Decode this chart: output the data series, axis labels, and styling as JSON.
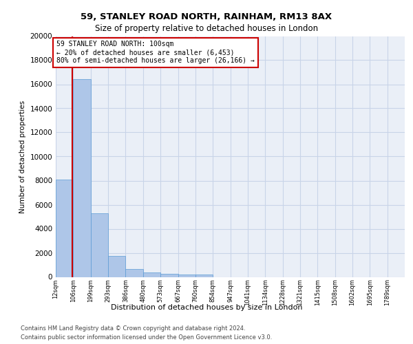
{
  "title1": "59, STANLEY ROAD NORTH, RAINHAM, RM13 8AX",
  "title2": "Size of property relative to detached houses in London",
  "xlabel": "Distribution of detached houses by size in London",
  "ylabel": "Number of detached properties",
  "annotation_line1": "59 STANLEY ROAD NORTH: 100sqm",
  "annotation_line2": "← 20% of detached houses are smaller (6,453)",
  "annotation_line3": "80% of semi-detached houses are larger (26,166) →",
  "footer1": "Contains HM Land Registry data © Crown copyright and database right 2024.",
  "footer2": "Contains public sector information licensed under the Open Government Licence v3.0.",
  "property_size": 100,
  "bin_edges": [
    12,
    106,
    199,
    293,
    386,
    480,
    573,
    667,
    760,
    854,
    947,
    1041,
    1134,
    1228,
    1321,
    1415,
    1508,
    1602,
    1695,
    1789,
    1882
  ],
  "bar_heights": [
    8100,
    16450,
    5300,
    1750,
    650,
    350,
    280,
    220,
    200,
    0,
    0,
    0,
    0,
    0,
    0,
    0,
    0,
    0,
    0,
    0
  ],
  "bar_color": "#aec6e8",
  "bar_edge_color": "#5b9bd5",
  "red_line_color": "#cc0000",
  "annotation_border_color": "#cc0000",
  "grid_color": "#c8d4e8",
  "background_color": "#eaeff7",
  "ylim": [
    0,
    20000
  ],
  "yticks": [
    0,
    2000,
    4000,
    6000,
    8000,
    10000,
    12000,
    14000,
    16000,
    18000,
    20000
  ]
}
